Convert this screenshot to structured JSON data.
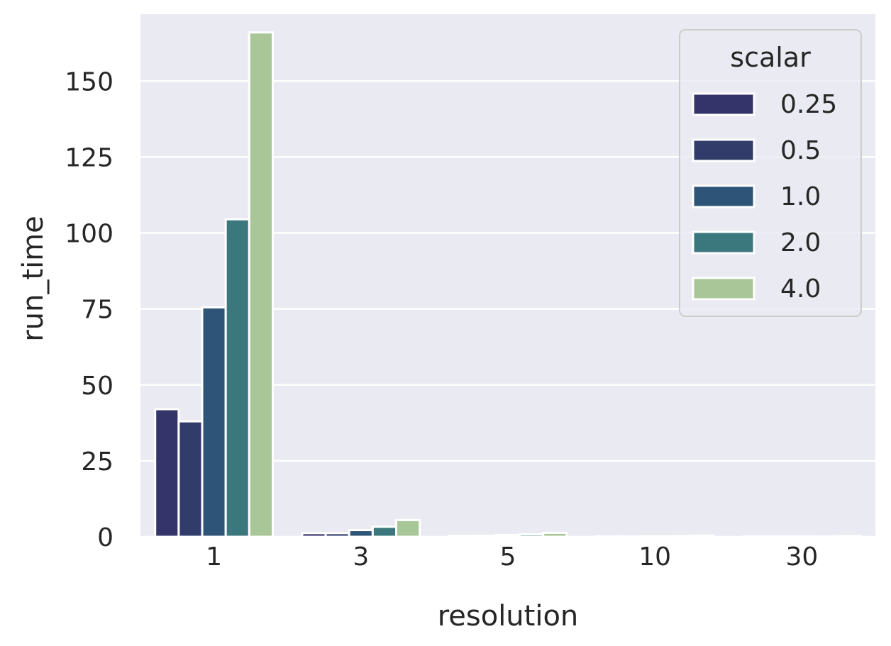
{
  "chart_data": {
    "type": "bar",
    "xlabel": "resolution",
    "ylabel": "run_time",
    "categories": [
      "1",
      "3",
      "5",
      "10",
      "30"
    ],
    "ylim": [
      0,
      172
    ],
    "yticks": [
      0,
      25,
      50,
      75,
      100,
      125,
      150
    ],
    "grid": true,
    "legend": {
      "title": "scalar",
      "placement": "top-right"
    },
    "series": [
      {
        "name": "0.25",
        "color": "#35346a",
        "values": [
          42,
          1.2,
          0.3,
          0.15,
          0.1
        ]
      },
      {
        "name": "0.5",
        "color": "#313c6b",
        "values": [
          38,
          1.2,
          0.35,
          0.15,
          0.1
        ]
      },
      {
        "name": "1.0",
        "color": "#2e5478",
        "values": [
          75.5,
          2.2,
          0.6,
          0.2,
          0.1
        ]
      },
      {
        "name": "2.0",
        "color": "#3a787e",
        "values": [
          104.5,
          3.3,
          0.8,
          0.25,
          0.15
        ]
      },
      {
        "name": "4.0",
        "color": "#a8c698",
        "values": [
          166,
          5.5,
          1.3,
          0.4,
          0.25
        ]
      }
    ]
  }
}
